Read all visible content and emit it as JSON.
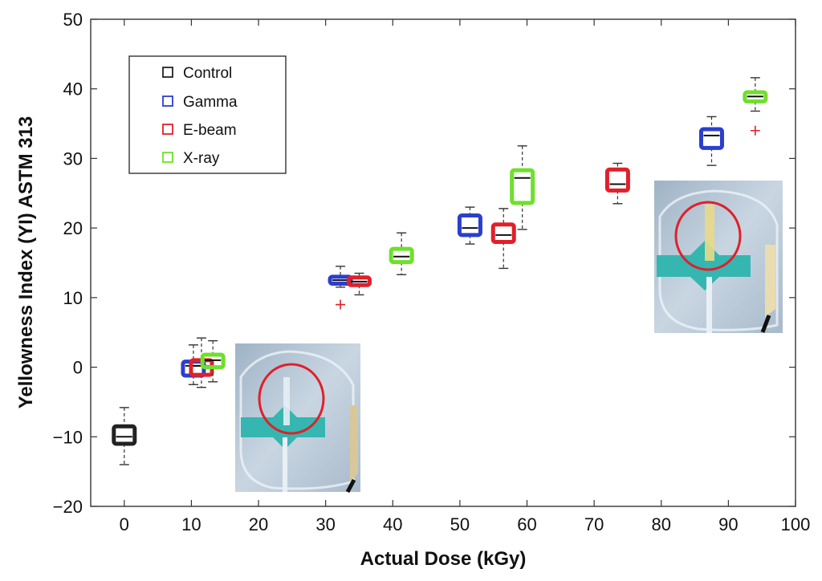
{
  "chart_data": {
    "type": "box",
    "xlabel": "Actual Dose (kGy)",
    "ylabel": "Yellowness Index (YI) ASTM 313",
    "xlim": [
      -5,
      100
    ],
    "ylim": [
      -20,
      50
    ],
    "xticks": [
      0,
      10,
      20,
      30,
      40,
      50,
      60,
      70,
      80,
      90,
      100
    ],
    "yticks": [
      -20,
      -10,
      0,
      10,
      20,
      30,
      40,
      50
    ],
    "ytick_labels": [
      "−20",
      "−10",
      "0",
      "10",
      "20",
      "30",
      "40",
      "50"
    ],
    "legend": {
      "position": "top-left",
      "entries": [
        {
          "name": "Control",
          "color": "#222222"
        },
        {
          "name": "Gamma",
          "color": "#2b3fcc"
        },
        {
          "name": "E-beam",
          "color": "#e0202a"
        },
        {
          "name": "X-ray",
          "color": "#6ee02a"
        }
      ]
    },
    "series": [
      {
        "name": "Control",
        "color": "#222222",
        "boxes": [
          {
            "x": 0,
            "whisker_low": -14,
            "q1": -11,
            "median": -10,
            "q3": -8.5,
            "whisker_high": -5.8,
            "outliers": []
          }
        ]
      },
      {
        "name": "Gamma",
        "color": "#2b3fcc",
        "boxes": [
          {
            "x": 10.3,
            "whisker_low": -2.5,
            "q1": -1.2,
            "median": 0.2,
            "q3": 0.8,
            "whisker_high": 3.2,
            "outliers": []
          },
          {
            "x": 32.2,
            "whisker_low": 11.5,
            "q1": 12,
            "median": 12.5,
            "q3": 13,
            "whisker_high": 14.5,
            "outliers": [
              9
            ]
          },
          {
            "x": 51.5,
            "whisker_low": 17.7,
            "q1": 19,
            "median": 20,
            "q3": 21.8,
            "whisker_high": 23,
            "outliers": []
          },
          {
            "x": 87.5,
            "whisker_low": 29,
            "q1": 31.5,
            "median": 33.3,
            "q3": 34.2,
            "whisker_high": 36,
            "outliers": []
          }
        ]
      },
      {
        "name": "E-beam",
        "color": "#e0202a",
        "boxes": [
          {
            "x": 11.5,
            "whisker_low": -2.9,
            "q1": -1.1,
            "median": 0.2,
            "q3": 1,
            "whisker_high": 4.2,
            "outliers": []
          },
          {
            "x": 35,
            "whisker_low": 10.4,
            "q1": 11.8,
            "median": 12.3,
            "q3": 12.9,
            "whisker_high": 13.5,
            "outliers": []
          },
          {
            "x": 56.5,
            "whisker_low": 14.2,
            "q1": 18,
            "median": 19,
            "q3": 20.5,
            "whisker_high": 22.8,
            "outliers": []
          },
          {
            "x": 73.5,
            "whisker_low": 23.5,
            "q1": 25.4,
            "median": 26.3,
            "q3": 28.4,
            "whisker_high": 29.3,
            "outliers": []
          }
        ]
      },
      {
        "name": "X-ray",
        "color": "#6ee02a",
        "boxes": [
          {
            "x": 13.2,
            "whisker_low": -2.1,
            "q1": 0,
            "median": 1,
            "q3": 1.8,
            "whisker_high": 3.8,
            "outliers": []
          },
          {
            "x": 41.3,
            "whisker_low": 13.3,
            "q1": 15.1,
            "median": 15.9,
            "q3": 17,
            "whisker_high": 19.3,
            "outliers": []
          },
          {
            "x": 59.3,
            "whisker_low": 19.8,
            "q1": 23.6,
            "median": 27.2,
            "q3": 28.3,
            "whisker_high": 31.8,
            "outliers": []
          },
          {
            "x": 94,
            "whisker_low": 36.8,
            "q1": 38.2,
            "median": 38.9,
            "q3": 39.5,
            "whisker_high": 41.6,
            "outliers": [
              34
            ]
          }
        ]
      }
    ],
    "insets": [
      "blood-collection-set-photo-with-red-circle",
      "irradiated-blood-collection-set-photo-with-red-circle"
    ]
  }
}
